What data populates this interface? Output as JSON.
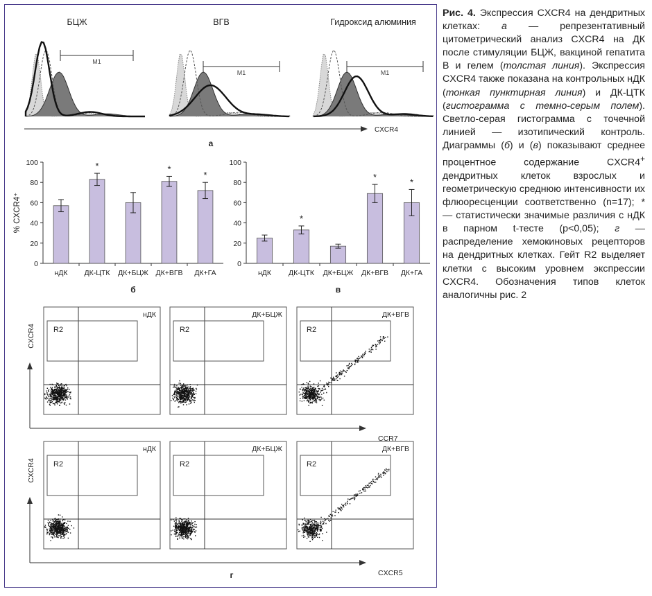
{
  "panel_a": {
    "histograms": [
      {
        "title": "БЦЖ",
        "gate_label": "M1"
      },
      {
        "title": "ВГВ",
        "gate_label": "M1"
      },
      {
        "title": "Гидроксид алюминия",
        "gate_label": "M1"
      }
    ],
    "axis_label": "CXCR4",
    "panel_letter": "а"
  },
  "chart_data": [
    {
      "type": "bar",
      "panel": "б",
      "categories": [
        "нДК",
        "ДК-ЦТК",
        "ДК+БЦЖ",
        "ДК+ВГВ",
        "ДК+ГА"
      ],
      "values": [
        57,
        83,
        60,
        81,
        72
      ],
      "errors": [
        6,
        6,
        10,
        5,
        8
      ],
      "significant": [
        false,
        true,
        false,
        true,
        true
      ],
      "ylabel": "% CXCR4⁺",
      "ylim": [
        0,
        100
      ],
      "yticks": [
        0,
        20,
        40,
        60,
        80,
        100
      ],
      "bar_color": "#c8bedf"
    },
    {
      "type": "bar",
      "panel": "в",
      "categories": [
        "нДК",
        "ДК-ЦТК",
        "ДК+БЦЖ",
        "ДК+ВГВ",
        "ДК+ГА"
      ],
      "values": [
        25,
        33,
        17,
        69,
        60
      ],
      "errors": [
        3,
        4,
        2,
        9,
        13
      ],
      "significant": [
        false,
        true,
        false,
        true,
        true
      ],
      "ylabel": "",
      "ylim": [
        0,
        100
      ],
      "yticks": [
        0,
        20,
        40,
        60,
        80,
        100
      ],
      "bar_color": "#c8bedf"
    }
  ],
  "panel_g": {
    "row1": {
      "y_label": "CXCR4",
      "x_label": "CCR7",
      "plots": [
        "нДК",
        "ДК+БЦЖ",
        "ДК+ВГВ"
      ],
      "gate": "R2"
    },
    "row2": {
      "y_label": "CXCR4",
      "x_label": "CXCR5",
      "plots": [
        "нДК",
        "ДК+БЦЖ",
        "ДК+ВГВ"
      ],
      "gate": "R2"
    },
    "panel_letter": "г"
  },
  "significance_mark": "*",
  "caption": {
    "fig_label": "Рис. 4.",
    "p1": " Экспрессия CXCR4 на дендритных клетках: ",
    "p2": "а",
    "p3": " — репрезентативный цитометрический анализ CXCR4 на ДК после стимуляции БЦЖ, вакциной гепатита В и гелем (",
    "p4": "толстая линия",
    "p5": "). Экспрессия CXCR4 также показана на контрольных нДК (",
    "p6": "тонкая пунктирная линия",
    "p7": ") и ДК-ЦТК (",
    "p8": "гистограмма с темно-серым полем",
    "p9": "). Светло-серая гистограмма с точечной линией — изотипический контроль. Диаграммы (",
    "p10": "б",
    "p11": ") и (",
    "p12": "в",
    "p13": ") показывают среднее процентное содержание CXCR4",
    "p14": "+",
    "p15": " дендритных клеток взрослых и геометрическую среднюю интенсивности их флюоресценции соответственно (n=17); * — статистически значимые различия с нДК в парном t-тесте (p<0,05); ",
    "p16": "г",
    "p17": " — распределение хемокиновых рецепторов на дендритных клетках. Гейт R2 выделяет клетки с высоким уровнем экспрессии CXCR4. Обозначения типов клеток аналогичны рис. 2"
  }
}
